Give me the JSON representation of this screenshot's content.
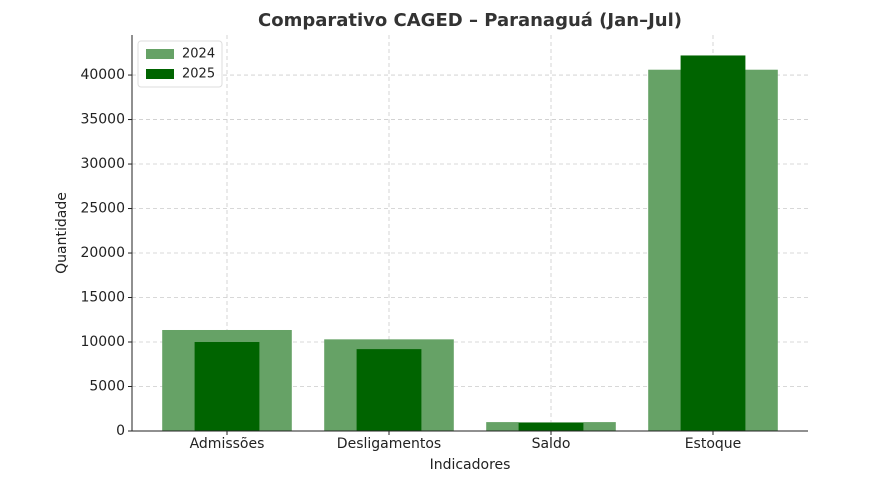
{
  "chart_data": {
    "type": "bar",
    "title": "Comparativo CAGED – Paranaguá (Jan–Jul)",
    "x_label": "Indicadores",
    "y_label": "Quantidade",
    "categories": [
      "Admissões",
      "Desligamentos",
      "Saldo",
      "Estoque"
    ],
    "series": [
      {
        "name": "2024",
        "color": "#66a266",
        "values": [
          11350,
          10300,
          1000,
          40600
        ]
      },
      {
        "name": "2025",
        "color": "#006400",
        "values": [
          10000,
          9200,
          900,
          42200
        ]
      }
    ],
    "ylim": [
      0,
      44500
    ],
    "yticks": [
      0,
      5000,
      10000,
      15000,
      20000,
      25000,
      30000,
      35000,
      40000
    ],
    "grid": true,
    "legend": "upper-left"
  }
}
